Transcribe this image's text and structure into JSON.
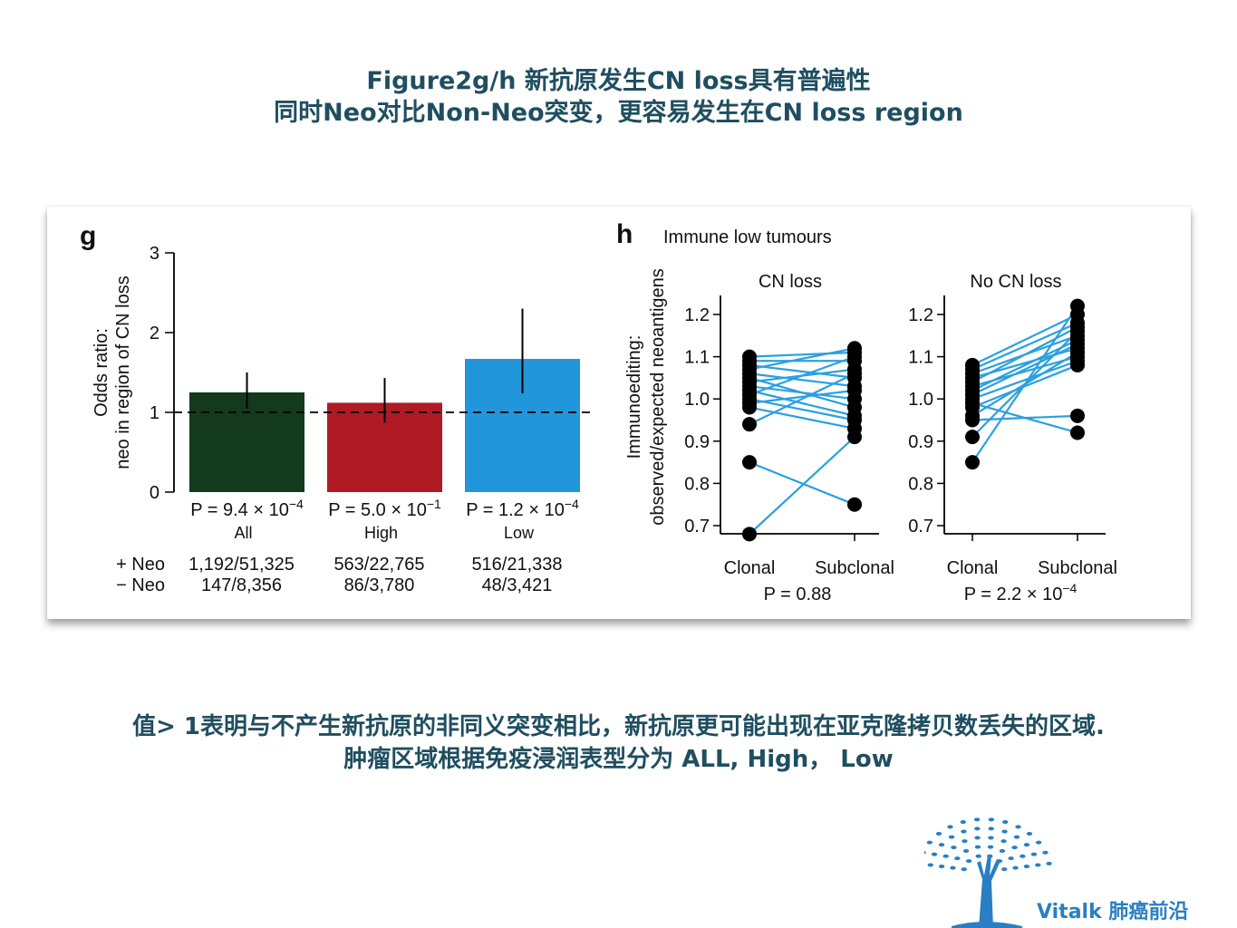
{
  "title": {
    "line1": "Figure2g/h 新抗原发生CN loss具有普遍性",
    "line2": "同时Neo对比Non-Neo突变，更容易发生在CN loss region"
  },
  "caption": {
    "line1": "值> 1表明与不产生新抗原的非同义突变相比，新抗原更可能出现在亚克隆拷贝数丢失的区域.",
    "line2": "肿瘤区域根据免疫浸润表型分为 ALL, High， Low"
  },
  "logo": {
    "text": "Vitalk 肺癌前沿",
    "icon": "tree-icon"
  },
  "colors": {
    "title_text": "#1f4e60",
    "all_bar": "#133a1c",
    "high_bar": "#b01a24",
    "low_bar": "#2196db",
    "line_color": "#2aa0e0",
    "logo": "#2a7fc4"
  },
  "chart_data": [
    {
      "panel_letter": "g",
      "type": "bar",
      "ylabel_line1": "Odds ratio:",
      "ylabel_line2": "neo in region of CN loss",
      "ylim": [
        0,
        3
      ],
      "yticks": [
        "0",
        "1",
        "2",
        "3"
      ],
      "reference_line": 1,
      "categories": [
        "All",
        "High",
        "Low"
      ],
      "values": [
        1.25,
        1.12,
        1.67
      ],
      "error_low": [
        1.05,
        0.87,
        1.24
      ],
      "error_high": [
        1.5,
        1.43,
        2.3
      ],
      "pvalues": [
        {
          "base": "P = 9.4 × 10",
          "exp": "−4"
        },
        {
          "base": "P = 5.0 × 10",
          "exp": "−1"
        },
        {
          "base": "P = 1.2 × 10",
          "exp": "−4"
        }
      ],
      "row_labels": [
        "+ Neo",
        "− Neo"
      ],
      "plus_neo": [
        "1,192/51,325",
        "563/22,765",
        "516/21,338"
      ],
      "minus_neo": [
        "147/8,356",
        "86/3,780",
        "48/3,421"
      ]
    },
    {
      "panel_letter": "h",
      "type": "line",
      "heading": "Immune low tumours",
      "ylabel_line1": "Immunoediting:",
      "ylabel_line2": "observed/expected neoantigens",
      "ylim": [
        0.68,
        1.24
      ],
      "yticks": [
        "0.7",
        "0.8",
        "0.9",
        "1.0",
        "1.1",
        "1.2"
      ],
      "x": [
        "Clonal",
        "Subclonal"
      ],
      "subplots": [
        {
          "title": "CN loss",
          "pvalue": {
            "base": "P = 0.88",
            "exp": ""
          },
          "pairs": [
            [
              1.1,
              1.11
            ],
            [
              1.09,
              1.09
            ],
            [
              1.08,
              1.05
            ],
            [
              1.07,
              1.12
            ],
            [
              1.06,
              1.03
            ],
            [
              1.05,
              0.98
            ],
            [
              1.04,
              1.07
            ],
            [
              1.03,
              1.0
            ],
            [
              1.02,
              0.96
            ],
            [
              1.01,
              1.1
            ],
            [
              1.0,
              0.95
            ],
            [
              0.99,
              1.02
            ],
            [
              0.98,
              0.93
            ],
            [
              0.94,
              1.06
            ],
            [
              0.85,
              0.75
            ],
            [
              0.68,
              0.91
            ]
          ]
        },
        {
          "title": "No CN loss",
          "pvalue": {
            "base": "P = 2.2 × 10",
            "exp": "−4"
          },
          "pairs": [
            [
              1.08,
              1.2
            ],
            [
              1.07,
              1.18
            ],
            [
              1.06,
              1.15
            ],
            [
              1.05,
              1.12
            ],
            [
              1.04,
              1.17
            ],
            [
              1.03,
              1.1
            ],
            [
              1.02,
              1.14
            ],
            [
              1.01,
              1.13
            ],
            [
              1.0,
              1.09
            ],
            [
              0.99,
              0.92
            ],
            [
              0.98,
              1.08
            ],
            [
              0.96,
              1.11
            ],
            [
              0.95,
              0.96
            ],
            [
              0.91,
              1.16
            ],
            [
              0.85,
              1.22
            ]
          ]
        }
      ]
    }
  ]
}
